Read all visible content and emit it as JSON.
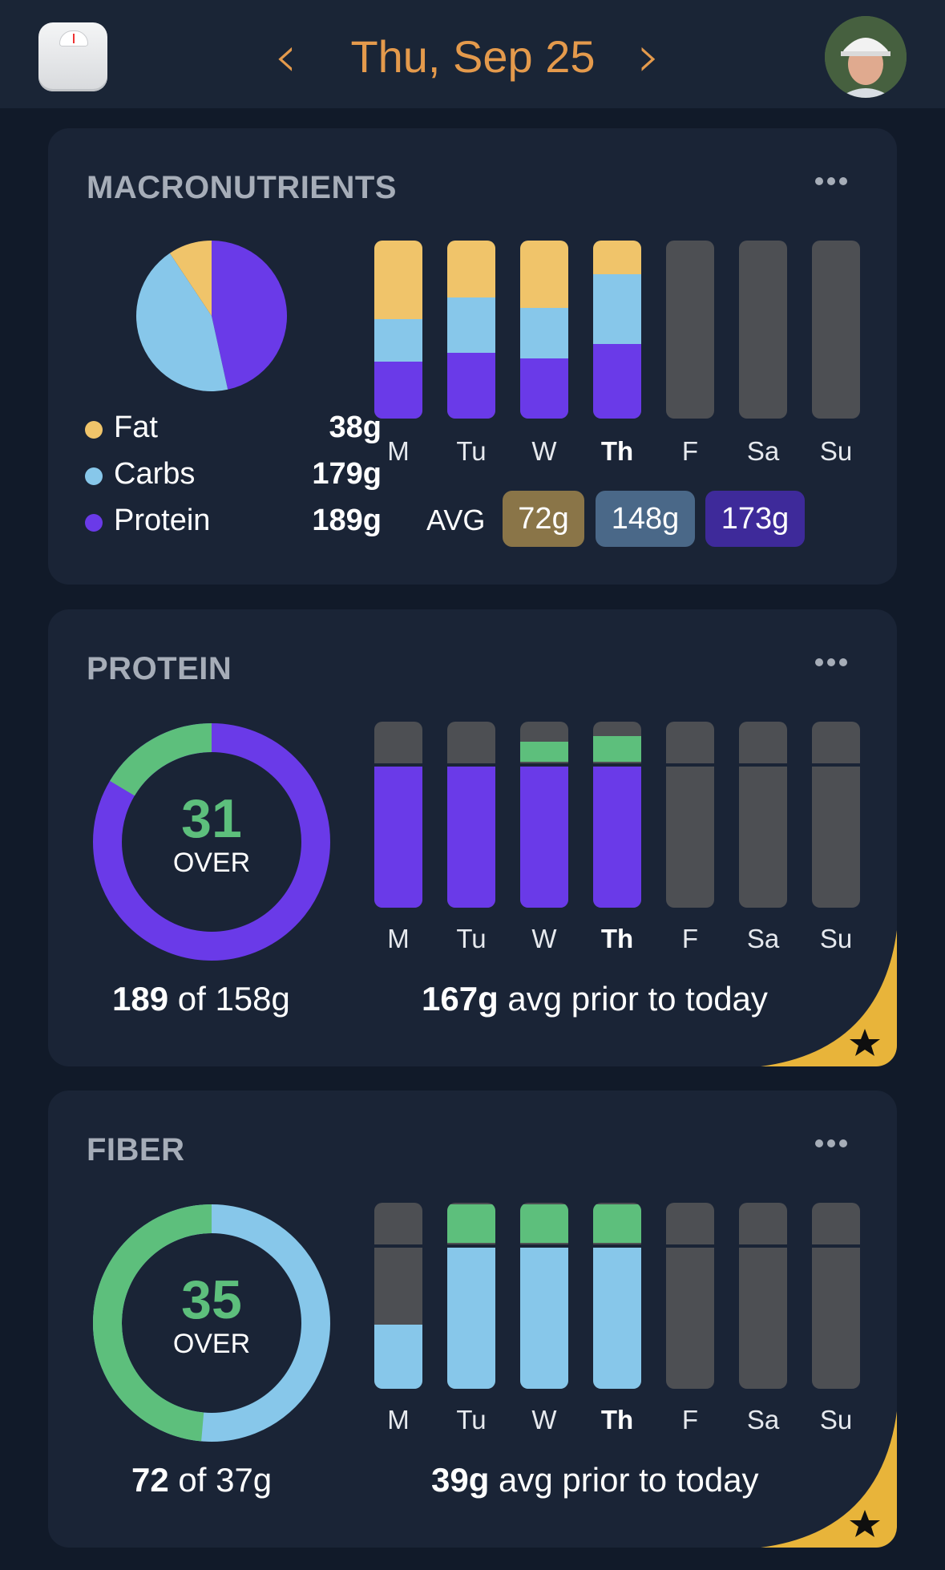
{
  "header": {
    "date": "Thu, Sep 25",
    "prev_icon": "chevron-left-icon",
    "next_icon": "chevron-right-icon",
    "scale_icon": "scale-icon",
    "avatar_icon": "avatar"
  },
  "colors": {
    "accent": "#e49a4c",
    "fat": "#f0c46a",
    "carbs": "#87c7ea",
    "protein": "#6a3ae8",
    "over": "#5dbf7c",
    "empty": "#4d4f53",
    "gold": "#e8b43a"
  },
  "days": [
    "M",
    "Tu",
    "W",
    "Th",
    "F",
    "Sa",
    "Su"
  ],
  "today_index": 3,
  "macros": {
    "title": "MACRONUTRIENTS",
    "legend": [
      {
        "name": "Fat",
        "value": "38g"
      },
      {
        "name": "Carbs",
        "value": "179g"
      },
      {
        "name": "Protein",
        "value": "189g"
      }
    ],
    "avg_label": "AVG",
    "avg_values": [
      "72g",
      "148g",
      "173g"
    ]
  },
  "protein": {
    "title": "PROTEIN",
    "ring_number": "31",
    "ring_word": "OVER",
    "consumed": "189",
    "of_target": " of 158g",
    "avg_value": "167g",
    "avg_text": " avg prior to today"
  },
  "fiber": {
    "title": "FIBER",
    "ring_number": "35",
    "ring_word": "OVER",
    "consumed": "72",
    "of_target": " of 37g",
    "avg_value": "39g",
    "avg_text": " avg prior to today"
  },
  "chart_data": [
    {
      "type": "pie",
      "categories": [
        "Fat",
        "Carbs",
        "Protein"
      ],
      "values": [
        38,
        179,
        189
      ]
    },
    {
      "type": "bar",
      "categories": [
        "M",
        "Tu",
        "W",
        "Th",
        "F",
        "Sa",
        "Su"
      ],
      "series": [
        {
          "name": "Protein",
          "values": [
            0.32,
            0.37,
            0.34,
            0.42,
            0,
            0,
            0
          ]
        },
        {
          "name": "Carbs",
          "values": [
            0.24,
            0.31,
            0.28,
            0.39,
            0,
            0,
            0
          ]
        },
        {
          "name": "Fat",
          "values": [
            0.44,
            0.32,
            0.38,
            0.19,
            0,
            0,
            0
          ]
        }
      ]
    },
    {
      "type": "bar",
      "categories": [
        "M",
        "Tu",
        "W",
        "Th",
        "F",
        "Sa",
        "Su"
      ],
      "goal": 1.0,
      "values": [
        1.0,
        1.02,
        1.16,
        1.2,
        0,
        0,
        0
      ]
    },
    {
      "type": "bar",
      "categories": [
        "M",
        "Tu",
        "W",
        "Th",
        "F",
        "Sa",
        "Su"
      ],
      "goal": 1.0,
      "values": [
        0.45,
        1.29,
        1.29,
        1.29,
        0,
        0,
        0
      ]
    }
  ]
}
